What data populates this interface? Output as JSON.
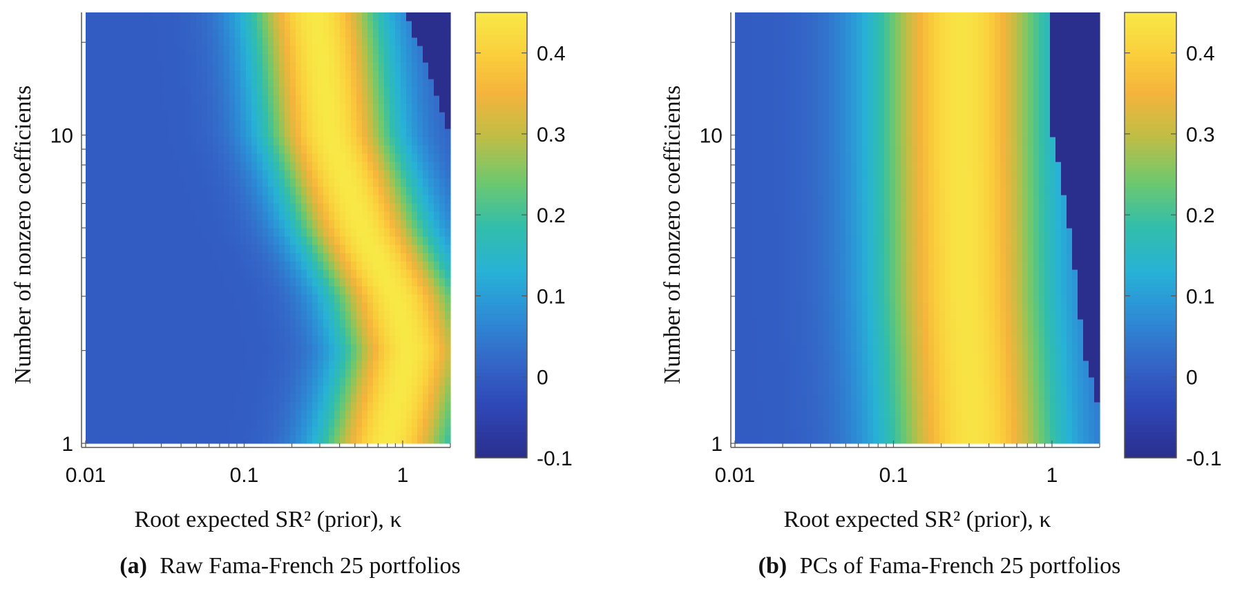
{
  "chart_data": [
    {
      "type": "heatmap",
      "panel_label": "(a)",
      "caption": "Raw Fama-French 25 portfolios",
      "xlabel": "Root expected SR² (prior), κ",
      "ylabel": "Number of nonzero coefficients",
      "x_scale": "log",
      "y_scale": "log",
      "xlim": [
        0.01,
        2
      ],
      "ylim": [
        1,
        25
      ],
      "x_ticks": [
        {
          "value": 0.01,
          "label": "0.01"
        },
        {
          "value": 0.1,
          "label": "0.1"
        },
        {
          "value": 1,
          "label": "1"
        }
      ],
      "y_ticks": [
        {
          "value": 1,
          "label": "1"
        },
        {
          "value": 10,
          "label": "10"
        }
      ],
      "colorbar": {
        "colormap": "parula",
        "range": [
          -0.1,
          0.45
        ],
        "ticks": [
          {
            "value": -0.1,
            "label": "-0.1"
          },
          {
            "value": 0,
            "label": "0"
          },
          {
            "value": 0.1,
            "label": "0.1"
          },
          {
            "value": 0.2,
            "label": "0.2"
          },
          {
            "value": 0.3,
            "label": "0.3"
          },
          {
            "value": 0.4,
            "label": "0.4"
          }
        ]
      },
      "surface": {
        "description": "Contour of cross-sectional R² vs kappa and model sparsity; ridge of maximum shifts to higher kappa as the number of nonzero coefficients decreases",
        "ridge": [
          [
            1,
            0.8
          ],
          [
            2,
            1.1
          ],
          [
            3,
            0.9
          ],
          [
            5,
            0.55
          ],
          [
            10,
            0.35
          ],
          [
            20,
            0.3
          ],
          [
            25,
            0.28
          ]
        ],
        "peak_value": 0.45,
        "floor_value": 0.0,
        "width": 0.42,
        "cutoff": [
          [
            25,
            1.05
          ],
          [
            18,
            1.35
          ],
          [
            12,
            1.8
          ],
          [
            10,
            2.0
          ]
        ],
        "cutoff_value": -0.1
      }
    },
    {
      "type": "heatmap",
      "panel_label": "(b)",
      "caption": "PCs of Fama-French 25 portfolios",
      "xlabel": "Root expected SR² (prior), κ",
      "ylabel": "Number of nonzero coefficients",
      "x_scale": "log",
      "y_scale": "log",
      "xlim": [
        0.01,
        2
      ],
      "ylim": [
        1,
        25
      ],
      "x_ticks": [
        {
          "value": 0.01,
          "label": "0.01"
        },
        {
          "value": 0.1,
          "label": "0.1"
        },
        {
          "value": 1,
          "label": "1"
        }
      ],
      "y_ticks": [
        {
          "value": 1,
          "label": "1"
        },
        {
          "value": 10,
          "label": "10"
        }
      ],
      "colorbar": {
        "colormap": "parula",
        "range": [
          -0.1,
          0.45
        ],
        "ticks": [
          {
            "value": -0.1,
            "label": "-0.1"
          },
          {
            "value": 0,
            "label": "0"
          },
          {
            "value": 0.1,
            "label": "0.1"
          },
          {
            "value": 0.2,
            "label": "0.2"
          },
          {
            "value": 0.3,
            "label": "0.3"
          },
          {
            "value": 0.4,
            "label": "0.4"
          }
        ]
      },
      "surface": {
        "description": "Cross-sectional R² peaks near kappa ≈ 0.3 roughly independent of sparsity; values fall off to the left and right",
        "ridge": [
          [
            1,
            0.32
          ],
          [
            3,
            0.28
          ],
          [
            10,
            0.27
          ],
          [
            25,
            0.27
          ]
        ],
        "peak_value": 0.44,
        "floor_value": 0.0,
        "width": 0.55,
        "cutoff": [
          [
            25,
            0.95
          ],
          [
            12,
            0.95
          ],
          [
            5,
            1.3
          ],
          [
            2,
            1.6
          ],
          [
            1.3,
            2.0
          ]
        ],
        "cutoff_value": -0.1
      }
    }
  ]
}
